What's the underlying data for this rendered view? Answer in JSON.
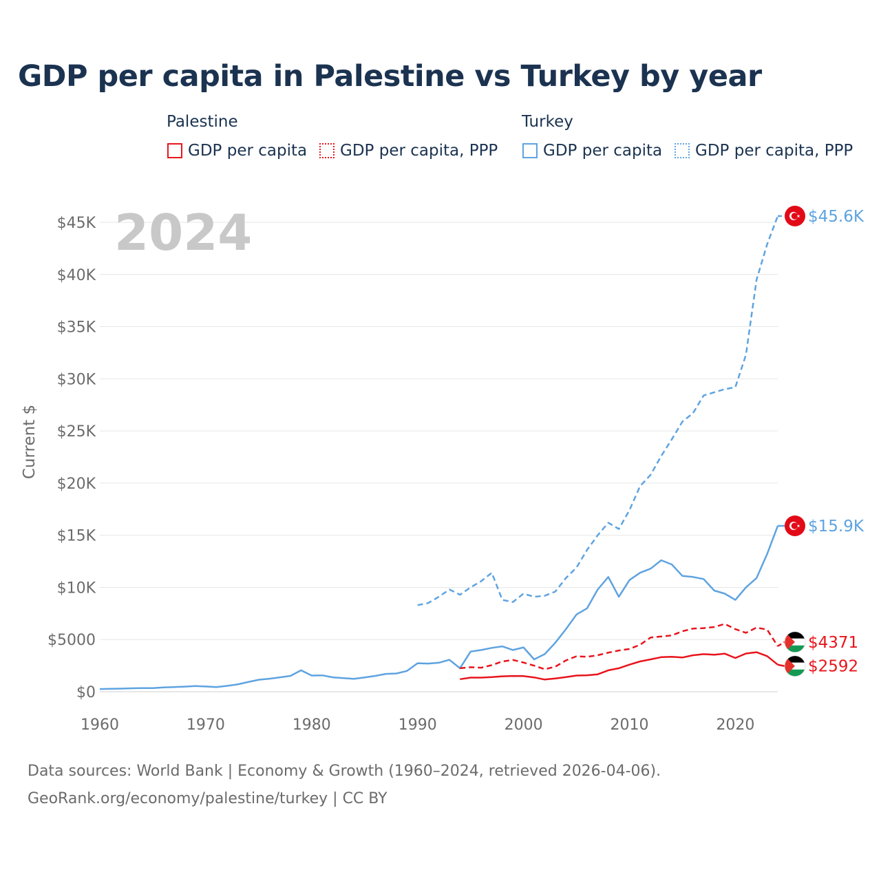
{
  "title": "GDP per capita in Palestine vs Turkey by year",
  "legend": {
    "groups": [
      {
        "name": "Palestine",
        "items": [
          "GDP per capita",
          "GDP per capita, PPP"
        ]
      },
      {
        "name": "Turkey",
        "items": [
          "GDP per capita",
          "GDP per capita, PPP"
        ]
      }
    ]
  },
  "colors": {
    "palestine": "#e8141c",
    "turkey": "#5ea3e0",
    "grid": "#e6e6e6",
    "axis_text": "#6b6b6b",
    "year_watermark": "#c8c8c8"
  },
  "chart_data": {
    "type": "line",
    "title": "GDP per capita in Palestine vs Turkey by year",
    "xlabel": "",
    "ylabel": "Current $",
    "xlim": [
      1960,
      2024
    ],
    "ylim": [
      0,
      45000
    ],
    "x_ticks": [
      1960,
      1970,
      1980,
      1990,
      2000,
      2010,
      2020
    ],
    "x_tick_labels": [
      "1960",
      "1970",
      "1980",
      "1990",
      "2000",
      "2010",
      "2020"
    ],
    "y_ticks": [
      0,
      5000,
      10000,
      15000,
      20000,
      25000,
      30000,
      35000,
      40000,
      45000
    ],
    "y_tick_labels": [
      "$0",
      "$5000",
      "$10K",
      "$15K",
      "$20K",
      "$25K",
      "$30K",
      "$35K",
      "$40K",
      "$45K"
    ],
    "year_label": "2024",
    "series": [
      {
        "name": "Turkey GDP per capita",
        "country": "turkey",
        "style": "solid",
        "end_label": "$15.9K",
        "x": [
          1960,
          1961,
          1962,
          1963,
          1964,
          1965,
          1966,
          1967,
          1968,
          1969,
          1970,
          1971,
          1972,
          1973,
          1974,
          1975,
          1976,
          1977,
          1978,
          1979,
          1980,
          1981,
          1982,
          1983,
          1984,
          1985,
          1986,
          1987,
          1988,
          1989,
          1990,
          1991,
          1992,
          1993,
          1994,
          1995,
          1996,
          1997,
          1998,
          1999,
          2000,
          2001,
          2002,
          2003,
          2004,
          2005,
          2006,
          2007,
          2008,
          2009,
          2010,
          2011,
          2012,
          2013,
          2014,
          2015,
          2016,
          2017,
          2018,
          2019,
          2020,
          2021,
          2022,
          2023,
          2024
        ],
        "values": [
          260,
          280,
          300,
          330,
          340,
          350,
          410,
          450,
          490,
          540,
          500,
          440,
          560,
          700,
          930,
          1150,
          1250,
          1380,
          1520,
          2050,
          1550,
          1570,
          1380,
          1300,
          1240,
          1370,
          1520,
          1710,
          1750,
          1990,
          2730,
          2700,
          2780,
          3060,
          2250,
          3850,
          4000,
          4200,
          4350,
          4000,
          4250,
          3100,
          3600,
          4700,
          6000,
          7400,
          8000,
          9800,
          11000,
          9100,
          10700,
          11400,
          11800,
          12600,
          12200,
          11100,
          11000,
          10800,
          9700,
          9400,
          8800,
          10000,
          10900,
          13200,
          15900
        ]
      },
      {
        "name": "Turkey GDP per capita, PPP",
        "country": "turkey",
        "style": "dashed",
        "end_label": "$45.6K",
        "x": [
          1990,
          1991,
          1992,
          1993,
          1994,
          1995,
          1996,
          1997,
          1998,
          1999,
          2000,
          2001,
          2002,
          2003,
          2004,
          2005,
          2006,
          2007,
          2008,
          2009,
          2010,
          2011,
          2012,
          2013,
          2014,
          2015,
          2016,
          2017,
          2018,
          2019,
          2020,
          2021,
          2022,
          2023,
          2024
        ],
        "values": [
          8300,
          8500,
          9100,
          9800,
          9300,
          10000,
          10600,
          11400,
          8800,
          8600,
          9400,
          9100,
          9200,
          9600,
          10900,
          11900,
          13600,
          15000,
          16200,
          15600,
          17400,
          19700,
          20800,
          22600,
          24200,
          25900,
          26700,
          28400,
          28700,
          29000,
          29200,
          32300,
          39500,
          42900,
          45600
        ]
      },
      {
        "name": "Palestine GDP per capita",
        "country": "palestine",
        "style": "solid",
        "end_label": "$2592",
        "x": [
          1994,
          1995,
          1996,
          1997,
          1998,
          1999,
          2000,
          2001,
          2002,
          2003,
          2004,
          2005,
          2006,
          2007,
          2008,
          2009,
          2010,
          2011,
          2012,
          2013,
          2014,
          2015,
          2016,
          2017,
          2018,
          2019,
          2020,
          2021,
          2022,
          2023,
          2024
        ],
        "values": [
          1200,
          1350,
          1350,
          1400,
          1480,
          1510,
          1500,
          1370,
          1170,
          1270,
          1400,
          1550,
          1580,
          1670,
          2050,
          2250,
          2590,
          2900,
          3100,
          3310,
          3350,
          3280,
          3500,
          3600,
          3550,
          3650,
          3230,
          3660,
          3790,
          3410,
          2592
        ]
      },
      {
        "name": "Palestine GDP per capita, PPP",
        "country": "palestine",
        "style": "dashed",
        "end_label": "$4371",
        "x": [
          1994,
          1995,
          1996,
          1997,
          1998,
          1999,
          2000,
          2001,
          2002,
          2003,
          2004,
          2005,
          2006,
          2007,
          2008,
          2009,
          2010,
          2011,
          2012,
          2013,
          2014,
          2015,
          2016,
          2017,
          2018,
          2019,
          2020,
          2021,
          2022,
          2023,
          2024
        ],
        "values": [
          2250,
          2350,
          2300,
          2550,
          2900,
          3050,
          2800,
          2500,
          2150,
          2400,
          3000,
          3400,
          3350,
          3500,
          3750,
          3950,
          4100,
          4500,
          5200,
          5300,
          5400,
          5800,
          6050,
          6100,
          6200,
          6500,
          6000,
          5650,
          6150,
          5950,
          4371
        ]
      }
    ]
  },
  "footer": {
    "line1": "Data sources: World Bank | Economy & Growth (1960–2024, retrieved 2026-04-06).",
    "line2": "GeoRank.org/economy/palestine/turkey | CC BY"
  }
}
